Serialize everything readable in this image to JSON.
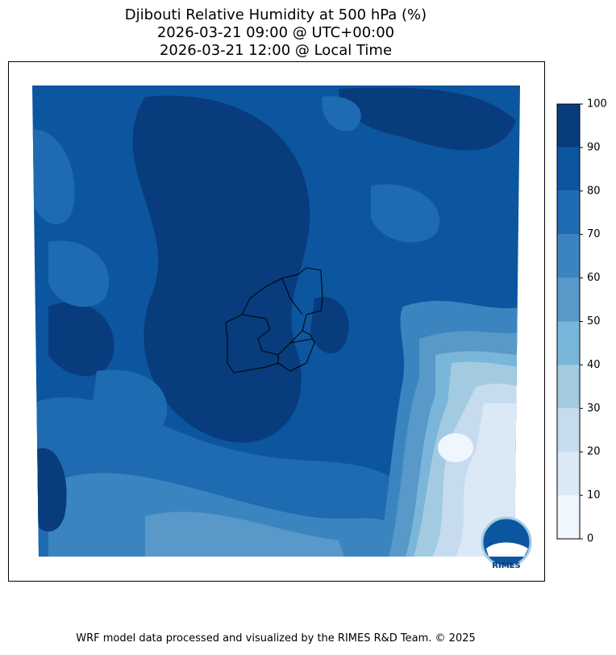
{
  "title_lines": [
    "Djibouti Relative Humidity at 500 hPa (%)",
    "2026-03-21 09:00 @ UTC+00:00",
    "2026-03-21 12:00 @ Local Time"
  ],
  "colorbar": {
    "lim": [
      0,
      100
    ],
    "ticks": [
      0,
      10,
      20,
      30,
      40,
      50,
      60,
      70,
      80,
      90,
      100
    ],
    "colors": [
      "#f0f6fd",
      "#dbe8f6",
      "#c7dbef",
      "#a2cbe2",
      "#7ab6d9",
      "#5899c9",
      "#3a85c0",
      "#1f6bb1",
      "#0c56a0",
      "#083c7d"
    ]
  },
  "logo_text": "RIMES",
  "footer": "WRF model data processed and visualized by the RIMES R&D Team. © 2025"
}
